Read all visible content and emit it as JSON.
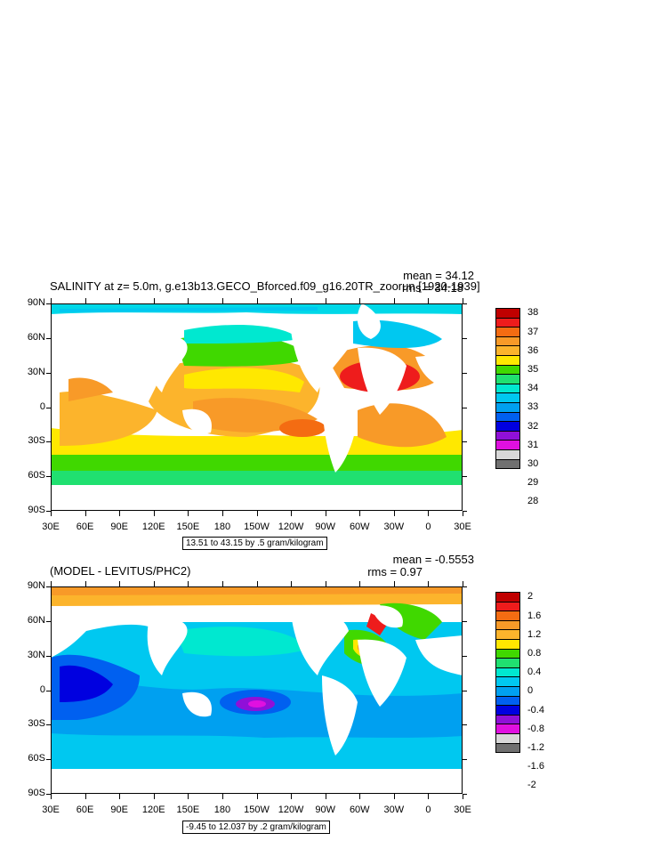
{
  "panel1": {
    "title": "SALINITY at z=   5.0m, g.e13b13.GECO_Bforced.f09_g16.20TR_zoorun [1920-1939]",
    "mean": "mean = 34.12",
    "rms": "rms = 34.18",
    "range": "13.51 to 43.15 by .5 gram/kilogram",
    "colorbar": {
      "labels": [
        "38",
        "37",
        "36",
        "35",
        "34",
        "33",
        "32",
        "31",
        "30",
        "29",
        "28"
      ],
      "colors": [
        "#c00000",
        "#ee1c1c",
        "#f46c12",
        "#f89a28",
        "#fcb42c",
        "#ffe800",
        "#40d800",
        "#20e070",
        "#00e8d0",
        "#00c8f0",
        "#00a0f0",
        "#0060f0",
        "#0000e0",
        "#9010d8",
        "#e010e0",
        "#d8d8d8",
        "#707070"
      ]
    }
  },
  "panel2": {
    "title": "(MODEL - LEVITUS/PHC2)",
    "mean": "mean = -0.5553",
    "rms": "rms = 0.97",
    "range": "-9.45 to 12.037 by .2 gram/kilogram",
    "colorbar": {
      "labels": [
        "2",
        "1.6",
        "1.2",
        "0.8",
        "0.4",
        "0",
        "-0.4",
        "-0.8",
        "-1.2",
        "-1.6",
        "-2"
      ],
      "colors": [
        "#c00000",
        "#ee1c1c",
        "#f46c12",
        "#f89a28",
        "#fcb42c",
        "#ffe800",
        "#40d800",
        "#20e070",
        "#00e8d0",
        "#00c8f0",
        "#00a0f0",
        "#0060f0",
        "#0000e0",
        "#9010d8",
        "#e010e0",
        "#d8d8d8",
        "#707070"
      ]
    }
  },
  "axes": {
    "lat_labels": [
      "90N",
      "60N",
      "30N",
      "0",
      "30S",
      "60S",
      "90S"
    ],
    "lon_labels": [
      "30E",
      "60E",
      "90E",
      "120E",
      "150E",
      "180",
      "150W",
      "120W",
      "90W",
      "60W",
      "30W",
      "0",
      "30E"
    ]
  }
}
